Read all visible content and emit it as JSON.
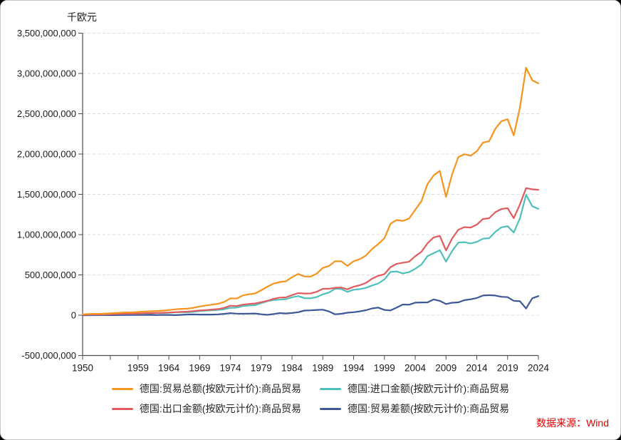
{
  "page": {
    "background": "#ffffff",
    "border_color": "#c6c6c6"
  },
  "source": {
    "label": "数据来源：Wind",
    "color": "#e60000"
  },
  "chart_data": {
    "type": "line",
    "title": "",
    "y_axis": {
      "unit": "千欧元",
      "min": -500000000,
      "max": 3500000000,
      "tick_step": 500000000,
      "grid": "dashed",
      "tick_values_billion_eur": [
        3500,
        3000,
        2500,
        2000,
        1500,
        1000,
        500,
        0,
        -500
      ],
      "tick_labels": [
        "3,500,000,000",
        "3,000,000,000",
        "2,500,000,000",
        "2,000,000,000",
        "1,500,000,000",
        "1,000,000,000",
        "500,000,000",
        "0",
        "-500,000,000"
      ]
    },
    "x_axis": {
      "min": 1950,
      "max": 2024,
      "ticks": [
        {
          "year": 1950,
          "label": "1950"
        },
        {
          "year": 1954.5,
          "label": ""
        },
        {
          "year": 1959,
          "label": "1959"
        },
        {
          "year": 1964,
          "label": "1964"
        },
        {
          "year": 1969,
          "label": "1969"
        },
        {
          "year": 1974,
          "label": "1974"
        },
        {
          "year": 1979,
          "label": "1979"
        },
        {
          "year": 1984,
          "label": "1984"
        },
        {
          "year": 1989,
          "label": "1989"
        },
        {
          "year": 1994,
          "label": "1994"
        },
        {
          "year": 1999,
          "label": "1999"
        },
        {
          "year": 2004,
          "label": "2004"
        },
        {
          "year": 2009,
          "label": "2009"
        },
        {
          "year": 2014,
          "label": "2014"
        },
        {
          "year": 2019,
          "label": "2019"
        },
        {
          "year": 2024,
          "label": "2024"
        }
      ]
    },
    "x": [
      1950,
      1951,
      1952,
      1953,
      1954,
      1955,
      1956,
      1957,
      1958,
      1959,
      1960,
      1961,
      1962,
      1963,
      1964,
      1965,
      1966,
      1967,
      1968,
      1969,
      1970,
      1971,
      1972,
      1973,
      1974,
      1975,
      1976,
      1977,
      1978,
      1979,
      1980,
      1981,
      1982,
      1983,
      1984,
      1985,
      1986,
      1987,
      1988,
      1989,
      1990,
      1991,
      1992,
      1993,
      1994,
      1995,
      1996,
      1997,
      1998,
      1999,
      2000,
      2001,
      2002,
      2003,
      2004,
      2005,
      2006,
      2007,
      2008,
      2009,
      2010,
      2011,
      2012,
      2013,
      2014,
      2015,
      2016,
      2017,
      2018,
      2019,
      2020,
      2021,
      2022,
      2023,
      2024
    ],
    "values_unit": "billion_eur",
    "axis_units_per_value_unit": 1000000,
    "series": [
      {
        "key": "total",
        "name": "德国:贸易总额(按欧元计价):商品贸易",
        "color": "#F7941E",
        "values": [
          10.1,
          15,
          16.9,
          17.7,
          21.1,
          25.6,
          30.1,
          34.6,
          34.9,
          39.4,
          46.3,
          48.7,
          52.3,
          56.5,
          63.3,
          72.7,
          78.4,
          80.4,
          92.4,
          108.2,
          120.1,
          130.9,
          142,
          165.5,
          209.8,
          207.5,
          244.8,
          260.2,
          270.3,
          310.1,
          353.7,
          391.7,
          411.2,
          420.5,
          471.7,
          511.8,
          480.7,
          479.1,
          515.1,
          586.9,
          610.2,
          669.6,
          669.1,
          611.2,
          669.4,
          696.3,
          739.9,
          822.5,
          882.1,
          954.8,
          1135.7,
          1181.1,
          1169.8,
          1199,
          1306.9,
          1414.4,
          1627,
          1735.1,
          1789.9,
          1467.9,
          1749,
          1963.2,
          1998.5,
          1978.4,
          2033.8,
          2142.8,
          2158.7,
          2313.5,
          2407.9,
          2432.3,
          2230.3,
          2577.7,
          3071.4,
          2914.7,
          2877
        ]
      },
      {
        "key": "import",
        "name": "德国:进口金额(按欧元计价):商品贸易",
        "color": "#4EC0BB",
        "values": [
          5.8,
          7.5,
          8.3,
          8.2,
          9.9,
          12.5,
          14.3,
          16.2,
          16,
          18.3,
          21.8,
          22.7,
          25.3,
          26.7,
          30.1,
          36,
          37.2,
          35.9,
          41.5,
          50.1,
          56,
          61.4,
          65.8,
          74.3,
          91.9,
          94.2,
          113.6,
          120.3,
          124.6,
          149.3,
          174.6,
          188.8,
          192.5,
          199.5,
          222.1,
          237.1,
          211.5,
          209.4,
          224.8,
          259.2,
          281.5,
          329.2,
          325.9,
          289.9,
          316.3,
          324.3,
          338.9,
          369.4,
          393.7,
          444.8,
          538.3,
          542.8,
          518.5,
          534.5,
          575.4,
          628.1,
          734,
          769.9,
          805.8,
          664.6,
          797.1,
          902,
          905.9,
          890.4,
          910.1,
          949.2,
          954.9,
          1034.6,
          1090,
          1104.1,
          1025.6,
          1202.2,
          1494,
          1352.5,
          1320
        ]
      },
      {
        "key": "export",
        "name": "德国:出口金额(按欧元计价):商品贸易",
        "color": "#E25B5E",
        "values": [
          4.3,
          7.5,
          8.6,
          9.5,
          11.2,
          13.1,
          15.8,
          18.4,
          18.9,
          21.1,
          24.5,
          26,
          27,
          29.8,
          33.2,
          36.7,
          41.2,
          44.5,
          50.9,
          58.1,
          64.1,
          69.5,
          76.2,
          91.2,
          117.9,
          113.3,
          131.2,
          139.9,
          145.7,
          160.8,
          179.1,
          202.9,
          218.7,
          221,
          249.6,
          274.7,
          269.2,
          269.7,
          290.3,
          327.7,
          328.7,
          340.4,
          343.2,
          321.3,
          353.1,
          372,
          401,
          453.1,
          488.4,
          510,
          597.4,
          638.3,
          651.3,
          664.5,
          731.5,
          786.3,
          893,
          965.2,
          984.1,
          803.3,
          951.9,
          1061.2,
          1092.6,
          1088,
          1123.7,
          1193.6,
          1203.8,
          1278.9,
          1317.9,
          1328.2,
          1204.7,
          1375.5,
          1577.4,
          1562.2,
          1557
        ]
      },
      {
        "key": "balance",
        "name": "德国:贸易差额(按欧元计价):商品贸易",
        "color": "#3C5896",
        "values": [
          -1.5,
          0,
          0.3,
          1.3,
          1.3,
          0.6,
          1.5,
          2.2,
          2.9,
          2.8,
          2.7,
          3.3,
          1.7,
          3.1,
          3.1,
          0.7,
          4,
          8.6,
          9.4,
          8,
          8.1,
          8.1,
          10.4,
          16.9,
          26,
          19.1,
          17.6,
          19.6,
          21.1,
          11.5,
          4.5,
          14.1,
          26.2,
          21.5,
          27.5,
          37.6,
          57.7,
          60.3,
          65.5,
          68.5,
          47.2,
          11.2,
          17.3,
          31.4,
          36.8,
          47.7,
          62.1,
          83.7,
          94.7,
          65.2,
          59.1,
          95.5,
          132.8,
          130,
          156.1,
          158.2,
          159,
          195.3,
          178.3,
          138.7,
          154.8,
          159.2,
          186.7,
          197.6,
          213.6,
          244.4,
          248.9,
          244.3,
          227.9,
          224.1,
          179.1,
          173.3,
          83.4,
          209.7,
          237
        ]
      }
    ],
    "legend": {
      "position": "bottom",
      "rows": 2,
      "columns": 2
    }
  }
}
